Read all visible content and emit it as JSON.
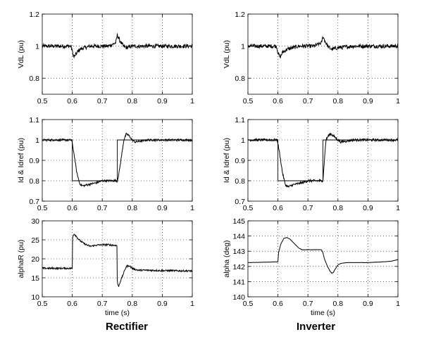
{
  "figure": {
    "captions": {
      "left": "Rectifier",
      "right": "Inverter"
    }
  },
  "chart_data": [
    {
      "type": "line",
      "column": "left",
      "xlabel": "",
      "ylabel": "VdL (pu)",
      "xlim": [
        0.5,
        1
      ],
      "ylim": [
        0.7,
        1.2
      ],
      "xticks": [
        "0.5",
        "0.6",
        "0.7",
        "0.8",
        "0.9",
        "1"
      ],
      "yticks": [
        "0.8",
        "1",
        "1.2"
      ],
      "ytick_values": [
        0.8,
        1.0,
        1.2
      ],
      "grid": true,
      "series": [
        {
          "style": "noisy",
          "noise": 0.012,
          "x": [
            0.5,
            0.595,
            0.6,
            0.605,
            0.612,
            0.625,
            0.64,
            0.66,
            0.68,
            0.7,
            0.72,
            0.745,
            0.75,
            0.755,
            0.76,
            0.77,
            0.78,
            0.8,
            0.85,
            0.9,
            1.0
          ],
          "y": [
            1.0,
            1.0,
            0.97,
            0.93,
            0.95,
            0.98,
            0.99,
            1.0,
            1.0,
            1.0,
            1.0,
            1.02,
            1.07,
            1.05,
            1.03,
            1.0,
            0.99,
            1.0,
            1.0,
            1.0,
            1.0
          ]
        }
      ]
    },
    {
      "type": "line",
      "column": "right",
      "xlabel": "",
      "ylabel": "VdL (pu)",
      "xlim": [
        0.5,
        1
      ],
      "ylim": [
        0.7,
        1.2
      ],
      "xticks": [
        "0.5",
        "0.6",
        "0.7",
        "0.8",
        "0.9",
        "1"
      ],
      "yticks": [
        "0.8",
        "1",
        "1.2"
      ],
      "ytick_values": [
        0.8,
        1.0,
        1.2
      ],
      "grid": true,
      "series": [
        {
          "style": "noisy",
          "noise": 0.012,
          "x": [
            0.5,
            0.595,
            0.6,
            0.607,
            0.615,
            0.63,
            0.65,
            0.67,
            0.7,
            0.72,
            0.745,
            0.75,
            0.755,
            0.76,
            0.77,
            0.78,
            0.8,
            0.85,
            0.9,
            1.0
          ],
          "y": [
            1.0,
            1.0,
            0.96,
            0.93,
            0.96,
            0.98,
            0.99,
            1.0,
            1.0,
            1.0,
            1.02,
            1.06,
            1.04,
            1.02,
            0.99,
            0.98,
            0.99,
            1.0,
            1.0,
            1.0
          ]
        }
      ]
    },
    {
      "type": "line",
      "column": "left",
      "xlabel": "",
      "ylabel": "Id & Idref (pu)",
      "xlim": [
        0.5,
        1
      ],
      "ylim": [
        0.7,
        1.1
      ],
      "xticks": [
        "0.5",
        "0.6",
        "0.7",
        "0.8",
        "0.9",
        "1"
      ],
      "yticks": [
        "0.7",
        "0.8",
        "0.9",
        "1",
        "1.1"
      ],
      "ytick_values": [
        0.7,
        0.8,
        0.9,
        1.0,
        1.1
      ],
      "grid": true,
      "series": [
        {
          "style": "step",
          "x": [
            0.5,
            0.6,
            0.6,
            0.75,
            0.75,
            1.0
          ],
          "y": [
            1.0,
            1.0,
            0.8,
            0.8,
            1.0,
            1.0
          ]
        },
        {
          "style": "noisy",
          "noise": 0.005,
          "x": [
            0.5,
            0.598,
            0.605,
            0.615,
            0.625,
            0.635,
            0.65,
            0.68,
            0.7,
            0.72,
            0.74,
            0.75,
            0.755,
            0.765,
            0.772,
            0.78,
            0.79,
            0.8,
            0.81,
            0.85,
            0.9,
            1.0
          ],
          "y": [
            1.0,
            1.0,
            0.94,
            0.84,
            0.785,
            0.775,
            0.78,
            0.79,
            0.8,
            0.8,
            0.8,
            0.8,
            0.83,
            0.93,
            1.0,
            1.03,
            1.02,
            1.0,
            0.99,
            1.0,
            1.0,
            1.0
          ]
        }
      ]
    },
    {
      "type": "line",
      "column": "right",
      "xlabel": "",
      "ylabel": "Id & Idref (pu)",
      "xlim": [
        0.5,
        1
      ],
      "ylim": [
        0.7,
        1.1
      ],
      "xticks": [
        "0.5",
        "0.6",
        "0.7",
        "0.8",
        "0.9",
        "1"
      ],
      "yticks": [
        "0.7",
        "0.8",
        "0.9",
        "1",
        "1.1"
      ],
      "ytick_values": [
        0.7,
        0.8,
        0.9,
        1.0,
        1.1
      ],
      "grid": true,
      "series": [
        {
          "style": "step",
          "x": [
            0.5,
            0.6,
            0.6,
            0.75,
            0.75,
            1.0
          ],
          "y": [
            1.0,
            1.0,
            0.8,
            0.8,
            1.0,
            1.0
          ]
        },
        {
          "style": "noisy",
          "noise": 0.006,
          "x": [
            0.5,
            0.598,
            0.605,
            0.615,
            0.625,
            0.635,
            0.65,
            0.68,
            0.7,
            0.72,
            0.74,
            0.75,
            0.755,
            0.76,
            0.768,
            0.775,
            0.785,
            0.8,
            0.81,
            0.85,
            0.9,
            1.0
          ],
          "y": [
            1.0,
            1.0,
            0.94,
            0.84,
            0.78,
            0.77,
            0.78,
            0.79,
            0.8,
            0.8,
            0.8,
            0.8,
            0.9,
            1.0,
            1.02,
            1.03,
            1.02,
            1.0,
            0.99,
            1.0,
            1.0,
            1.0
          ]
        }
      ]
    },
    {
      "type": "line",
      "column": "left",
      "xlabel": "time (s)",
      "ylabel": "alphaR (pu)",
      "xlim": [
        0.5,
        1
      ],
      "ylim": [
        10,
        30
      ],
      "xticks": [
        "0.5",
        "0.6",
        "0.7",
        "0.8",
        "0.9",
        "1"
      ],
      "yticks": [
        "10",
        "15",
        "20",
        "25",
        "30"
      ],
      "ytick_values": [
        10,
        15,
        20,
        25,
        30
      ],
      "grid": true,
      "series": [
        {
          "style": "noisy",
          "noise": 0.22,
          "x": [
            0.5,
            0.6,
            0.6,
            0.605,
            0.61,
            0.62,
            0.63,
            0.64,
            0.65,
            0.66,
            0.68,
            0.7,
            0.72,
            0.749,
            0.75,
            0.752,
            0.755,
            0.76,
            0.77,
            0.775,
            0.78,
            0.79,
            0.8,
            0.81,
            0.82,
            0.85,
            0.9,
            1.0
          ],
          "y": [
            17.5,
            17.5,
            25.5,
            26.5,
            26.3,
            25.2,
            24.5,
            24.0,
            23.6,
            23.3,
            23.6,
            23.7,
            23.7,
            23.5,
            14.5,
            13.0,
            12.8,
            14.0,
            16.0,
            17.0,
            18.0,
            18.2,
            17.5,
            17.2,
            17.0,
            17.0,
            16.9,
            16.8
          ]
        }
      ]
    },
    {
      "type": "line",
      "column": "right",
      "xlabel": "time (s)",
      "ylabel": "alpha (deg)",
      "xlim": [
        0.5,
        1
      ],
      "ylim": [
        140,
        145
      ],
      "xticks": [
        "0.5",
        "0.6",
        "0.7",
        "0.8",
        "0.9",
        "1"
      ],
      "yticks": [
        "140",
        "141",
        "142",
        "143",
        "144",
        "145"
      ],
      "ytick_values": [
        140,
        141,
        142,
        143,
        144,
        145
      ],
      "grid": true,
      "series": [
        {
          "style": "noisy",
          "noise": 0.008,
          "x": [
            0.5,
            0.6,
            0.602,
            0.61,
            0.62,
            0.63,
            0.64,
            0.65,
            0.66,
            0.67,
            0.68,
            0.69,
            0.7,
            0.72,
            0.745,
            0.75,
            0.755,
            0.765,
            0.775,
            0.78,
            0.785,
            0.79,
            0.8,
            0.81,
            0.83,
            0.86,
            0.9,
            0.95,
            0.98,
            1.0
          ],
          "y": [
            142.25,
            142.3,
            142.9,
            143.5,
            143.85,
            143.9,
            143.8,
            143.6,
            143.4,
            143.2,
            143.1,
            143.1,
            143.1,
            143.1,
            143.1,
            142.9,
            142.5,
            142.0,
            141.65,
            141.55,
            141.6,
            141.8,
            142.1,
            142.2,
            142.25,
            142.25,
            142.25,
            142.3,
            142.35,
            142.45
          ]
        }
      ]
    }
  ]
}
